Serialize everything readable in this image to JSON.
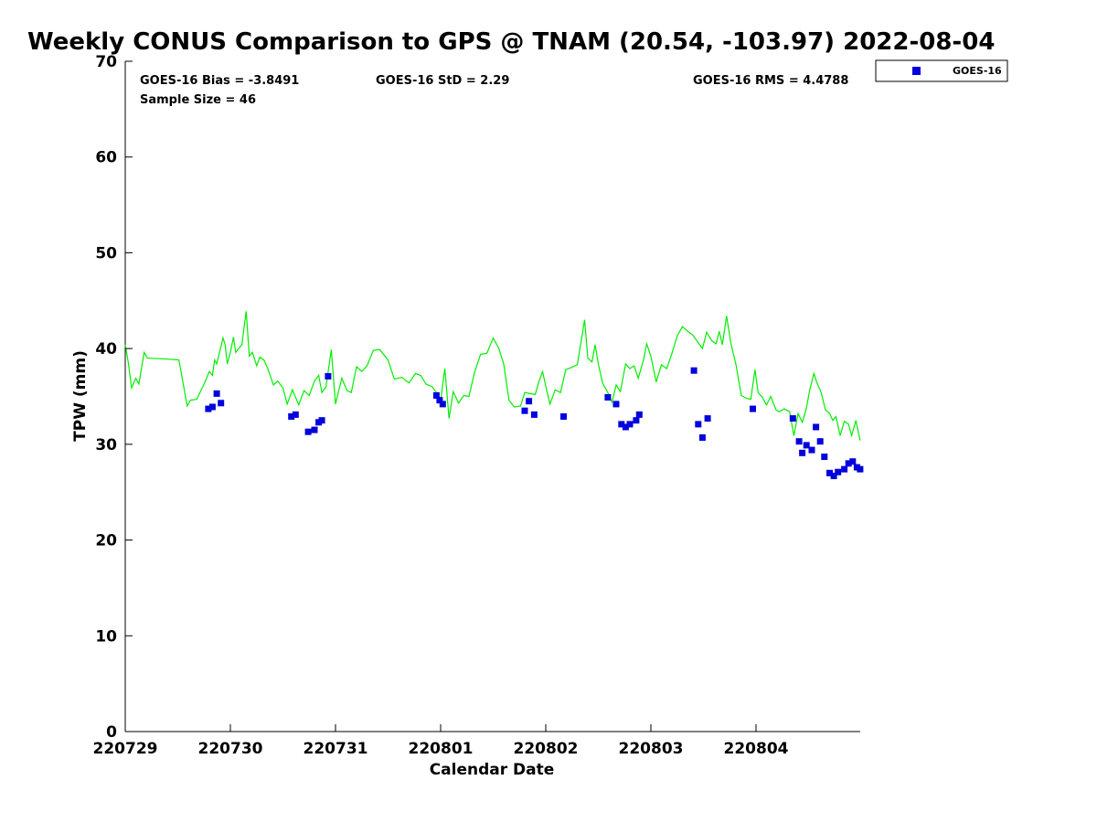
{
  "chart_data": {
    "type": "scatter",
    "title": "Weekly CONUS Comparison to GPS @ TNAM (20.54, -103.97) 2022-08-04",
    "xlabel": "Calendar Date",
    "ylabel": "TPW (mm)",
    "xlim": [
      "220729",
      "220805 (end)"
    ],
    "ylim": [
      0,
      70
    ],
    "xticks": [
      "220729",
      "220730",
      "220731",
      "220801",
      "220802",
      "220803",
      "220804"
    ],
    "yticks": [
      "0",
      "10",
      "20",
      "30",
      "40",
      "50",
      "60",
      "70"
    ],
    "grid": false,
    "legend_position": "top-right, outside plot",
    "annotations": {
      "bias": "GOES-16 Bias = -3.8491",
      "std": "GOES-16 StD = 2.29",
      "rms": "GOES-16 RMS = 4.4788",
      "sample": "Sample Size = 46"
    },
    "series": [
      {
        "name": "GOES-16",
        "kind": "scatter",
        "marker": "square",
        "color": "#0000dd",
        "points": [
          [
            0.79,
            33.7
          ],
          [
            0.83,
            33.9
          ],
          [
            0.87,
            35.3
          ],
          [
            0.91,
            34.3
          ],
          [
            1.58,
            32.9
          ],
          [
            1.62,
            33.1
          ],
          [
            1.74,
            31.3
          ],
          [
            1.8,
            31.5
          ],
          [
            1.84,
            32.3
          ],
          [
            1.87,
            32.5
          ],
          [
            1.93,
            37.1
          ],
          [
            2.96,
            35.1
          ],
          [
            2.99,
            34.6
          ],
          [
            3.02,
            34.2
          ],
          [
            3.8,
            33.5
          ],
          [
            3.84,
            34.5
          ],
          [
            3.89,
            33.1
          ],
          [
            4.17,
            32.9
          ],
          [
            4.59,
            34.9
          ],
          [
            4.67,
            34.2
          ],
          [
            4.72,
            32.1
          ],
          [
            4.76,
            31.8
          ],
          [
            4.8,
            32.1
          ],
          [
            4.86,
            32.5
          ],
          [
            4.89,
            33.1
          ],
          [
            5.41,
            37.7
          ],
          [
            5.45,
            32.1
          ],
          [
            5.49,
            30.7
          ],
          [
            5.54,
            32.7
          ],
          [
            5.97,
            33.7
          ],
          [
            6.35,
            32.7
          ],
          [
            6.41,
            30.3
          ],
          [
            6.44,
            29.1
          ],
          [
            6.48,
            29.9
          ],
          [
            6.53,
            29.4
          ],
          [
            6.57,
            31.8
          ],
          [
            6.61,
            30.3
          ],
          [
            6.65,
            28.7
          ],
          [
            6.7,
            27.0
          ],
          [
            6.74,
            26.7
          ],
          [
            6.78,
            27.1
          ],
          [
            6.84,
            27.4
          ],
          [
            6.88,
            28.0
          ],
          [
            6.92,
            28.2
          ],
          [
            6.96,
            27.6
          ],
          [
            6.99,
            27.4
          ]
        ]
      },
      {
        "kind": "line",
        "color": "#00ee00",
        "points": [
          [
            0.0,
            40.4
          ],
          [
            0.03,
            38.5
          ],
          [
            0.06,
            35.9
          ],
          [
            0.1,
            36.9
          ],
          [
            0.13,
            36.3
          ],
          [
            0.18,
            39.6
          ],
          [
            0.21,
            39.0
          ],
          [
            0.4,
            38.9
          ],
          [
            0.51,
            38.8
          ],
          [
            0.59,
            34.0
          ],
          [
            0.62,
            34.6
          ],
          [
            0.68,
            34.7
          ],
          [
            0.75,
            36.3
          ],
          [
            0.8,
            37.6
          ],
          [
            0.83,
            37.2
          ],
          [
            0.85,
            38.8
          ],
          [
            0.87,
            38.4
          ],
          [
            0.91,
            40.2
          ],
          [
            0.93,
            41.1
          ],
          [
            0.95,
            40.4
          ],
          [
            0.97,
            38.4
          ],
          [
            1.0,
            39.6
          ],
          [
            1.03,
            41.2
          ],
          [
            1.05,
            39.6
          ],
          [
            1.08,
            40.0
          ],
          [
            1.11,
            40.4
          ],
          [
            1.15,
            43.9
          ],
          [
            1.18,
            39.2
          ],
          [
            1.21,
            39.6
          ],
          [
            1.25,
            38.2
          ],
          [
            1.28,
            39.1
          ],
          [
            1.32,
            38.8
          ],
          [
            1.36,
            37.8
          ],
          [
            1.41,
            36.2
          ],
          [
            1.45,
            36.6
          ],
          [
            1.5,
            35.9
          ],
          [
            1.54,
            34.2
          ],
          [
            1.59,
            35.7
          ],
          [
            1.65,
            34.1
          ],
          [
            1.7,
            35.6
          ],
          [
            1.75,
            35.1
          ],
          [
            1.8,
            36.6
          ],
          [
            1.84,
            37.2
          ],
          [
            1.87,
            35.4
          ],
          [
            1.91,
            36.0
          ],
          [
            1.96,
            39.9
          ],
          [
            2.0,
            34.2
          ],
          [
            2.06,
            36.9
          ],
          [
            2.11,
            35.6
          ],
          [
            2.15,
            35.4
          ],
          [
            2.2,
            38.1
          ],
          [
            2.25,
            37.6
          ],
          [
            2.3,
            38.2
          ],
          [
            2.36,
            39.8
          ],
          [
            2.42,
            39.9
          ],
          [
            2.5,
            38.8
          ],
          [
            2.56,
            36.8
          ],
          [
            2.63,
            37.0
          ],
          [
            2.7,
            36.4
          ],
          [
            2.76,
            37.4
          ],
          [
            2.81,
            37.2
          ],
          [
            2.86,
            36.3
          ],
          [
            2.92,
            36.0
          ],
          [
            2.96,
            35.4
          ],
          [
            3.0,
            34.6
          ],
          [
            3.04,
            37.9
          ],
          [
            3.08,
            32.7
          ],
          [
            3.12,
            35.5
          ],
          [
            3.17,
            34.3
          ],
          [
            3.22,
            35.1
          ],
          [
            3.27,
            35.0
          ],
          [
            3.32,
            37.4
          ],
          [
            3.38,
            39.4
          ],
          [
            3.44,
            39.5
          ],
          [
            3.5,
            41.1
          ],
          [
            3.55,
            40.1
          ],
          [
            3.6,
            38.4
          ],
          [
            3.65,
            34.6
          ],
          [
            3.7,
            33.9
          ],
          [
            3.76,
            34.0
          ],
          [
            3.8,
            35.4
          ],
          [
            3.85,
            35.3
          ],
          [
            3.9,
            35.2
          ],
          [
            3.93,
            36.4
          ],
          [
            3.97,
            37.6
          ],
          [
            4.01,
            35.6
          ],
          [
            4.04,
            34.2
          ],
          [
            4.09,
            35.7
          ],
          [
            4.14,
            35.4
          ],
          [
            4.19,
            37.8
          ],
          [
            4.24,
            38.0
          ],
          [
            4.3,
            38.3
          ],
          [
            4.37,
            43.0
          ],
          [
            4.4,
            39.0
          ],
          [
            4.44,
            38.6
          ],
          [
            4.47,
            40.4
          ],
          [
            4.5,
            38.4
          ],
          [
            4.54,
            36.4
          ],
          [
            4.59,
            35.4
          ],
          [
            4.63,
            34.4
          ],
          [
            4.67,
            36.2
          ],
          [
            4.71,
            35.5
          ],
          [
            4.76,
            38.4
          ],
          [
            4.8,
            37.9
          ],
          [
            4.84,
            38.2
          ],
          [
            4.88,
            36.9
          ],
          [
            4.93,
            38.8
          ],
          [
            4.96,
            40.5
          ],
          [
            5.0,
            39.2
          ],
          [
            5.05,
            36.5
          ],
          [
            5.1,
            38.3
          ],
          [
            5.15,
            37.9
          ],
          [
            5.2,
            39.5
          ],
          [
            5.25,
            41.3
          ],
          [
            5.3,
            42.3
          ],
          [
            5.35,
            41.8
          ],
          [
            5.4,
            41.4
          ],
          [
            5.45,
            40.6
          ],
          [
            5.49,
            40.0
          ],
          [
            5.53,
            41.7
          ],
          [
            5.58,
            40.8
          ],
          [
            5.62,
            40.5
          ],
          [
            5.65,
            41.8
          ],
          [
            5.68,
            40.4
          ],
          [
            5.72,
            43.4
          ],
          [
            5.76,
            40.6
          ],
          [
            5.81,
            38.3
          ],
          [
            5.86,
            35.1
          ],
          [
            5.91,
            34.8
          ],
          [
            5.95,
            34.7
          ],
          [
            5.99,
            37.8
          ],
          [
            6.02,
            35.4
          ],
          [
            6.06,
            34.9
          ],
          [
            6.1,
            34.1
          ],
          [
            6.14,
            35.0
          ],
          [
            6.19,
            33.6
          ],
          [
            6.22,
            33.4
          ],
          [
            6.27,
            33.7
          ],
          [
            6.32,
            33.4
          ],
          [
            6.36,
            30.9
          ],
          [
            6.4,
            33.2
          ],
          [
            6.44,
            32.3
          ],
          [
            6.48,
            33.8
          ],
          [
            6.51,
            35.6
          ],
          [
            6.55,
            37.4
          ],
          [
            6.58,
            36.4
          ],
          [
            6.62,
            35.4
          ],
          [
            6.66,
            33.6
          ],
          [
            6.7,
            33.2
          ],
          [
            6.73,
            32.5
          ],
          [
            6.76,
            32.9
          ],
          [
            6.8,
            30.9
          ],
          [
            6.84,
            32.4
          ],
          [
            6.88,
            32.1
          ],
          [
            6.91,
            30.9
          ],
          [
            6.95,
            32.5
          ],
          [
            6.99,
            30.4
          ]
        ]
      }
    ]
  }
}
